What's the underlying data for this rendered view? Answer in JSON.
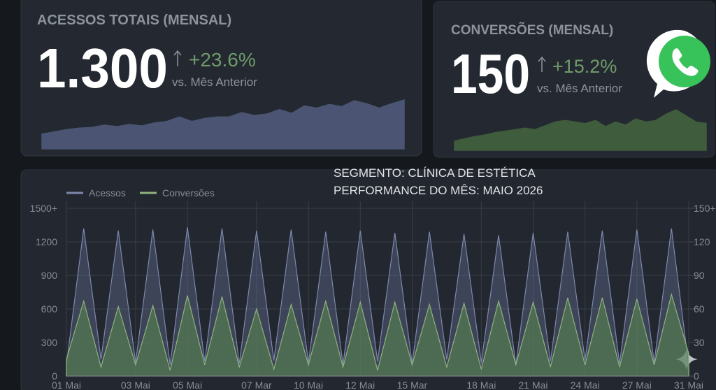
{
  "cards": [
    {
      "title": "ACESSOS TOTAIS (MENSAL)",
      "value": "1.300",
      "change": "+23.6%",
      "comparison": "vs. Mês Anterior"
    },
    {
      "title": "CONVERSÕES (MENSAL)",
      "value": "150",
      "change": "+15.2%",
      "comparison": "vs. Mês Anterior"
    }
  ],
  "header": {
    "segment": "SEGMENTO: CLÍNICA DE ESTÉTICA",
    "period": "PERFORMANCE DO MÊS: MAIO 2026"
  },
  "chart_data": [
    {
      "type": "area",
      "color": "#4b5573",
      "values": [
        20,
        23,
        26,
        28,
        29,
        32,
        30,
        33,
        31,
        35,
        37,
        43,
        37,
        41,
        43,
        43,
        49,
        45,
        47,
        53,
        48,
        58,
        55,
        60,
        57,
        65,
        61,
        55,
        61,
        66
      ]
    },
    {
      "type": "area",
      "color": "#3f5c3c",
      "values": [
        12,
        15,
        18,
        20,
        23,
        25,
        27,
        29,
        27,
        32,
        37,
        39,
        37,
        35,
        39,
        31,
        37,
        33,
        41,
        37,
        39,
        47,
        53,
        45,
        37,
        35
      ]
    },
    {
      "type": "line",
      "categories": [
        "01 Mai",
        null,
        null,
        null,
        "03 Mai",
        null,
        null,
        "05 Mai",
        null,
        null,
        null,
        "07 Mar",
        null,
        null,
        "10 Mai",
        null,
        null,
        "12 Mai",
        null,
        null,
        "15 Mar",
        null,
        null,
        null,
        "18 Mai",
        null,
        null,
        "21 Mai",
        null,
        null,
        "24 Mai",
        null,
        null,
        "27 Mai",
        null,
        null,
        "31 Mai"
      ],
      "series": [
        {
          "name": "Acessos",
          "color": "#7c88ab",
          "values": [
            100,
            1320,
            150,
            1300,
            120,
            1310,
            100,
            1330,
            130,
            1320,
            110,
            1300,
            140,
            1310,
            120,
            1290,
            100,
            1300,
            130,
            1280,
            110,
            1290,
            150,
            1270,
            120,
            1260,
            100,
            1280,
            130,
            1290,
            140,
            1300,
            110,
            1310,
            120,
            1320,
            90
          ]
        },
        {
          "name": "Conversões",
          "color": "#8fb37e",
          "axis": "y2",
          "values": [
            15,
            67,
            8,
            62,
            10,
            63,
            5,
            72,
            10,
            71,
            8,
            60,
            6,
            64,
            10,
            67,
            8,
            66,
            5,
            66,
            10,
            64,
            8,
            65,
            6,
            67,
            10,
            66,
            8,
            70,
            10,
            70,
            8,
            69,
            10,
            73,
            20
          ]
        }
      ],
      "ylim": [
        0,
        1500
      ],
      "yticks": [
        0,
        300,
        600,
        900,
        1200,
        {
          "value": 1500,
          "label": "1500+"
        }
      ],
      "y2lim": [
        0,
        150
      ],
      "y2ticks": [
        0,
        30,
        60,
        90,
        120,
        {
          "value": 150,
          "label": "150+"
        }
      ],
      "grid": true,
      "legend": "top-left"
    }
  ]
}
